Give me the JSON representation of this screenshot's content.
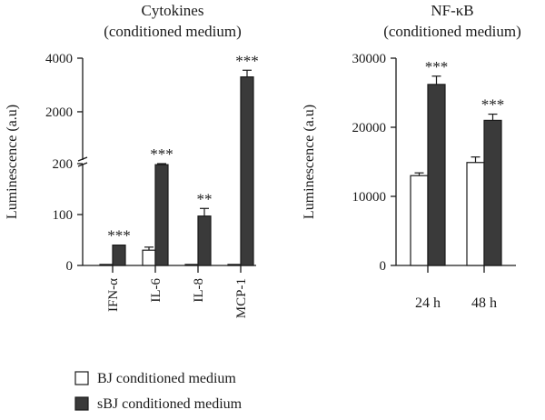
{
  "chart_data": [
    {
      "type": "bar",
      "title": "Cytokines",
      "subtitle": "(conditioned medium)",
      "ylabel": "Luminescence (a.u)",
      "xlabel": "",
      "broken_axis": true,
      "ylim_lower": [
        0,
        200
      ],
      "ylim_upper": [
        200,
        4000
      ],
      "yticks_lower": [
        "0",
        "100",
        "200"
      ],
      "yticks_upper": [
        "2000",
        "4000"
      ],
      "categories": [
        "IFN-α",
        "IL-6",
        "IL-8",
        "MCP-1"
      ],
      "series": [
        {
          "name": "BJ conditioned medium",
          "values": [
            2,
            30,
            2,
            2
          ],
          "errors": [
            0,
            6,
            0,
            0
          ]
        },
        {
          "name": "sBJ conditioned medium",
          "values": [
            40,
            198,
            97,
            3300
          ],
          "errors": [
            0,
            2,
            15,
            250
          ]
        }
      ],
      "significance": [
        "***",
        "***",
        "**",
        "***"
      ]
    },
    {
      "type": "bar",
      "title": "NF-κB",
      "subtitle": "(conditioned medium)",
      "ylabel": "Luminescence (a.u)",
      "xlabel": "",
      "ylim": [
        0,
        30000
      ],
      "yticks": [
        "0",
        "10000",
        "20000",
        "30000"
      ],
      "categories": [
        "24 h",
        "48 h"
      ],
      "series": [
        {
          "name": "BJ conditioned medium",
          "values": [
            13000,
            14900
          ],
          "errors": [
            400,
            800
          ]
        },
        {
          "name": "sBJ conditioned medium",
          "values": [
            26200,
            21000
          ],
          "errors": [
            1200,
            900
          ]
        }
      ],
      "significance": [
        "***",
        "***"
      ]
    }
  ],
  "legend": {
    "items": [
      {
        "label": "BJ conditioned medium",
        "color": "#ffffff"
      },
      {
        "label": "sBJ conditioned medium",
        "color": "#3a3a3a"
      }
    ],
    "placement": "bottom-left"
  },
  "colors": {
    "bj": "#ffffff",
    "sbj": "#3a3a3a",
    "axis": "#1a1a1a"
  }
}
